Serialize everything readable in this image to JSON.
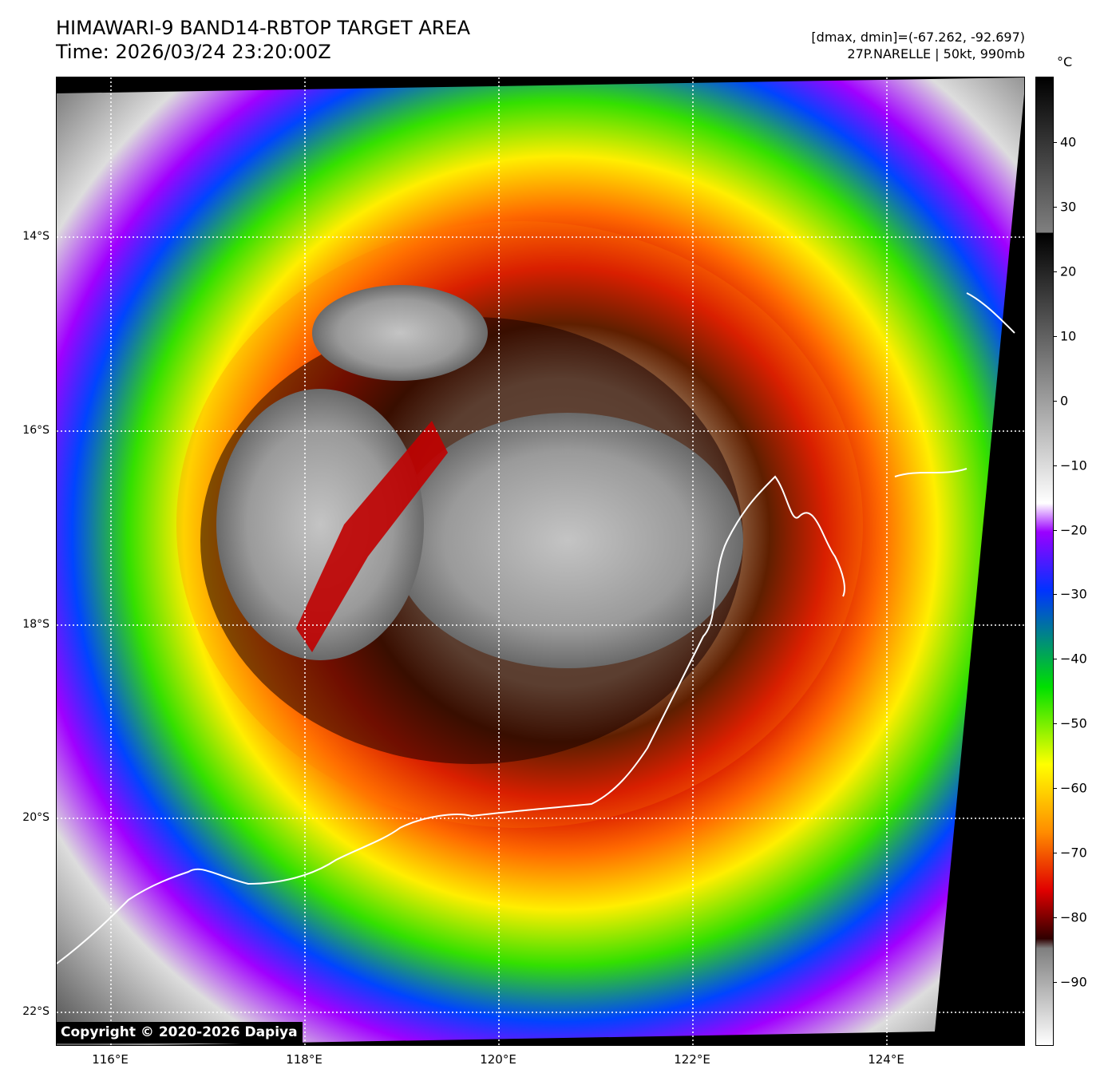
{
  "header": {
    "title_line1": "HIMAWARI-9 BAND14-RBTOP TARGET AREA",
    "title_line2": "Time: 2026/03/24 23:20:00Z",
    "range_text": "[dmax, dmin]=(-67.262, -92.697)",
    "storm_text": "27P.NARELLE | 50kt, 990mb"
  },
  "map": {
    "lat_labels": [
      "14°S",
      "16°S",
      "18°S",
      "20°S",
      "22°S"
    ],
    "lon_labels": [
      "116°E",
      "118°E",
      "120°E",
      "122°E",
      "124°E"
    ],
    "gridlines": "dotted",
    "copyright": "Copyright © 2020-2026 Dapiya"
  },
  "colorbar": {
    "unit": "°C",
    "ticks": [
      "40",
      "30",
      "20",
      "10",
      "0",
      "−10",
      "−20",
      "−30",
      "−40",
      "−50",
      "−60",
      "−70",
      "−80",
      "−90"
    ],
    "range": [
      -100,
      50
    ],
    "colors": {
      "warm_gray": "#7f7f7f",
      "cold_white": "#ffffff",
      "purple": "#9a00ff",
      "blue": "#0033ff",
      "green": "#00e000",
      "yellow": "#ffff00",
      "orange": "#ff8c00",
      "red": "#e00000",
      "dark_red": "#300000"
    }
  }
}
